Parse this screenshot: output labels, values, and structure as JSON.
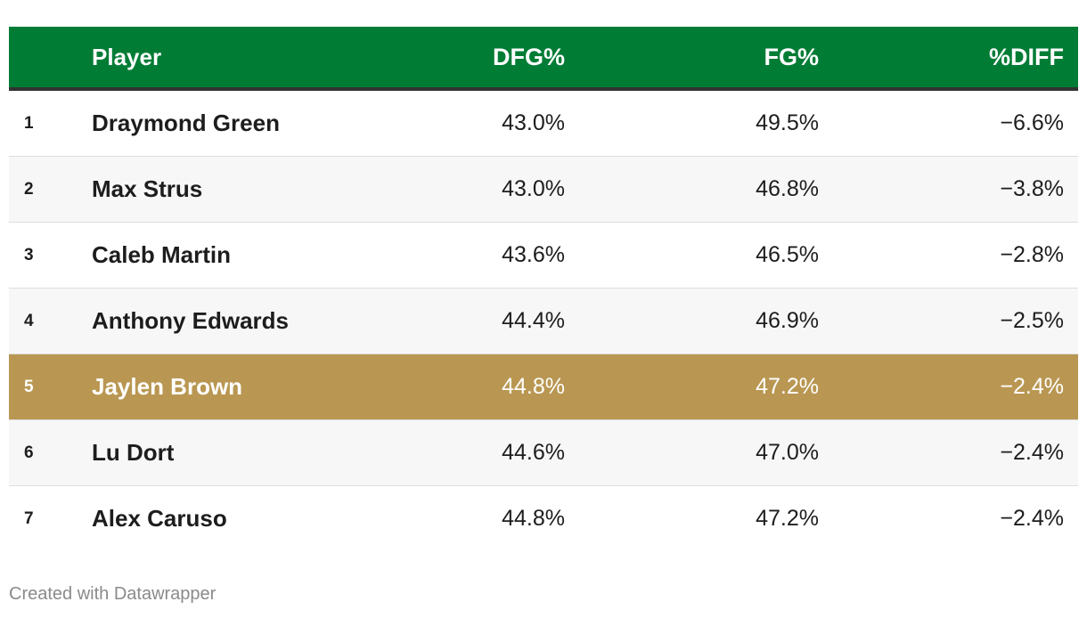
{
  "colors": {
    "header_bg": "#007c35",
    "header_rule": "#333333",
    "highlight_bg": "#b99752",
    "stripe_bg": "#f7f7f7",
    "row_bg": "#ffffff"
  },
  "chart_data": {
    "type": "table",
    "title": "",
    "columns": [
      "",
      "Player",
      "DFG%",
      "FG%",
      "%DIFF"
    ],
    "rows": [
      {
        "rank": "1",
        "player": "Draymond Green",
        "dfg": "43.0%",
        "fg": "49.5%",
        "diff": "−6.6%",
        "highlight": false
      },
      {
        "rank": "2",
        "player": "Max Strus",
        "dfg": "43.0%",
        "fg": "46.8%",
        "diff": "−3.8%",
        "highlight": false
      },
      {
        "rank": "3",
        "player": "Caleb Martin",
        "dfg": "43.6%",
        "fg": "46.5%",
        "diff": "−2.8%",
        "highlight": false
      },
      {
        "rank": "4",
        "player": "Anthony Edwards",
        "dfg": "44.4%",
        "fg": "46.9%",
        "diff": "−2.5%",
        "highlight": false
      },
      {
        "rank": "5",
        "player": "Jaylen Brown",
        "dfg": "44.8%",
        "fg": "47.2%",
        "diff": "−2.4%",
        "highlight": true
      },
      {
        "rank": "6",
        "player": "Lu Dort",
        "dfg": "44.6%",
        "fg": "47.0%",
        "diff": "−2.4%",
        "highlight": false
      },
      {
        "rank": "7",
        "player": "Alex Caruso",
        "dfg": "44.8%",
        "fg": "47.2%",
        "diff": "−2.4%",
        "highlight": false
      }
    ]
  },
  "footer": {
    "credit": "Created with Datawrapper"
  }
}
